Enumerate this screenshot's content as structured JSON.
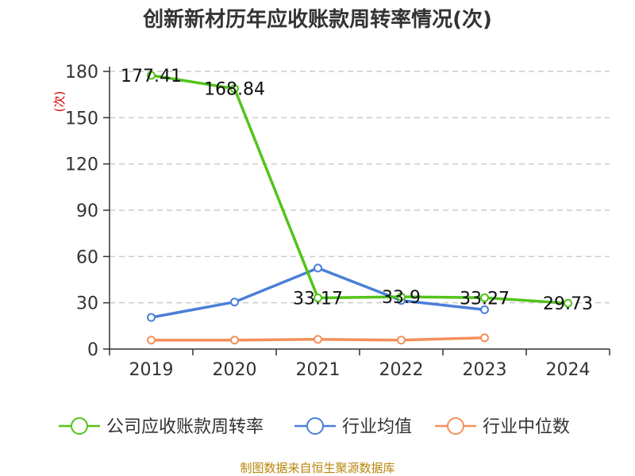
{
  "chart_data": {
    "type": "line",
    "title": "创新新材历年应收账款周转率情况(次)",
    "ylabel": "(次)",
    "ylim": [
      0,
      180
    ],
    "yticks": [
      0,
      30,
      60,
      90,
      120,
      150,
      180
    ],
    "categories": [
      "2019",
      "2020",
      "2021",
      "2022",
      "2023",
      "2024"
    ],
    "grid": true,
    "legend_position": "bottom",
    "series": [
      {
        "name": "公司应收账款周转率",
        "color": "#52c41a",
        "values": [
          177.41,
          168.84,
          33.17,
          33.9,
          33.27,
          29.73
        ],
        "labels": [
          "177.41",
          "168.84",
          "33.17",
          "33.9",
          "33.27",
          "29.73"
        ]
      },
      {
        "name": "行业均值",
        "color": "#4a7fd8",
        "values": [
          20.5,
          30.5,
          52.5,
          31.5,
          25.5,
          null
        ]
      },
      {
        "name": "行业中位数",
        "color": "#f4905a",
        "values": [
          5.8,
          5.8,
          6.3,
          5.8,
          7.3,
          null
        ]
      }
    ],
    "source": "制图数据来自恒生聚源数据库"
  }
}
